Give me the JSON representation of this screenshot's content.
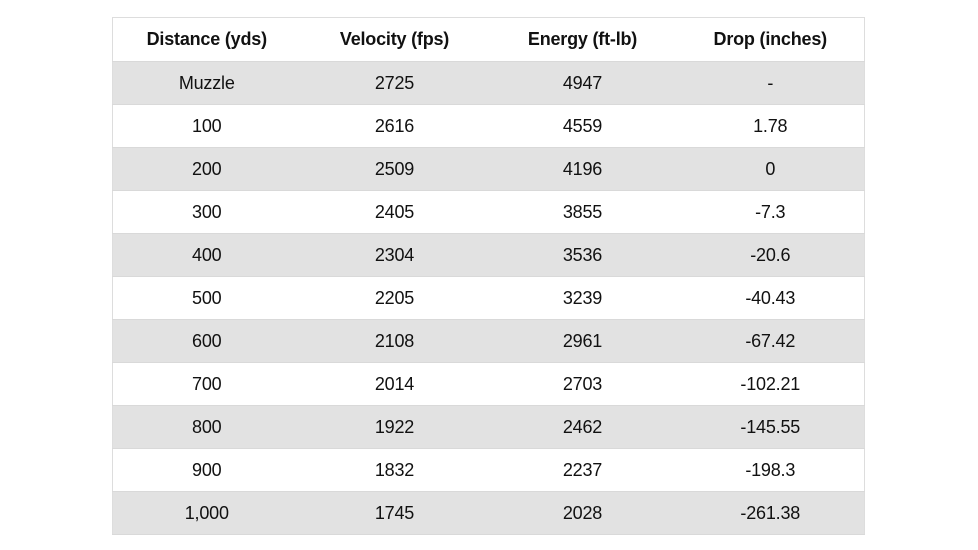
{
  "table": {
    "headers": [
      "Distance (yds)",
      "Velocity (fps)",
      "Energy (ft-lb)",
      "Drop (inches)"
    ],
    "rows": [
      [
        "Muzzle",
        "2725",
        "4947",
        "-"
      ],
      [
        "100",
        "2616",
        "4559",
        "1.78"
      ],
      [
        "200",
        "2509",
        "4196",
        "0"
      ],
      [
        "300",
        "2405",
        "3855",
        "-7.3"
      ],
      [
        "400",
        "2304",
        "3536",
        "-20.6"
      ],
      [
        "500",
        "2205",
        "3239",
        "-40.43"
      ],
      [
        "600",
        "2108",
        "2961",
        "-67.42"
      ],
      [
        "700",
        "2014",
        "2703",
        "-102.21"
      ],
      [
        "800",
        "1922",
        "2462",
        "-145.55"
      ],
      [
        "900",
        "1832",
        "2237",
        "-198.3"
      ],
      [
        "1,000",
        "1745",
        "2028",
        "-261.38"
      ]
    ]
  },
  "colors": {
    "stripe": "#e2e2e2",
    "background": "#ffffff",
    "text": "#111111"
  }
}
